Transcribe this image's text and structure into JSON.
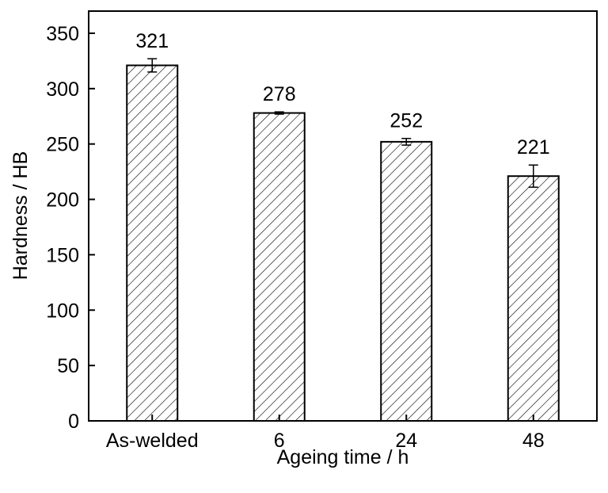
{
  "chart_data": {
    "type": "bar",
    "title": "",
    "xlabel": "Ageing time / h",
    "ylabel": "Hardness / HB",
    "categories": [
      "As-welded",
      "6",
      "24",
      "48"
    ],
    "values": [
      321,
      278,
      252,
      221
    ],
    "errors": [
      6,
      1,
      3,
      10
    ],
    "data_labels": [
      "321",
      "278",
      "252",
      "221"
    ],
    "ylim": [
      0,
      370
    ],
    "yticks": [
      0,
      50,
      100,
      150,
      200,
      250,
      300,
      350
    ],
    "ytick_labels": [
      "0",
      "50",
      "100",
      "150",
      "200",
      "250",
      "300",
      "350"
    ],
    "bar_fill": "hatched",
    "grid": false,
    "legend": "none"
  }
}
